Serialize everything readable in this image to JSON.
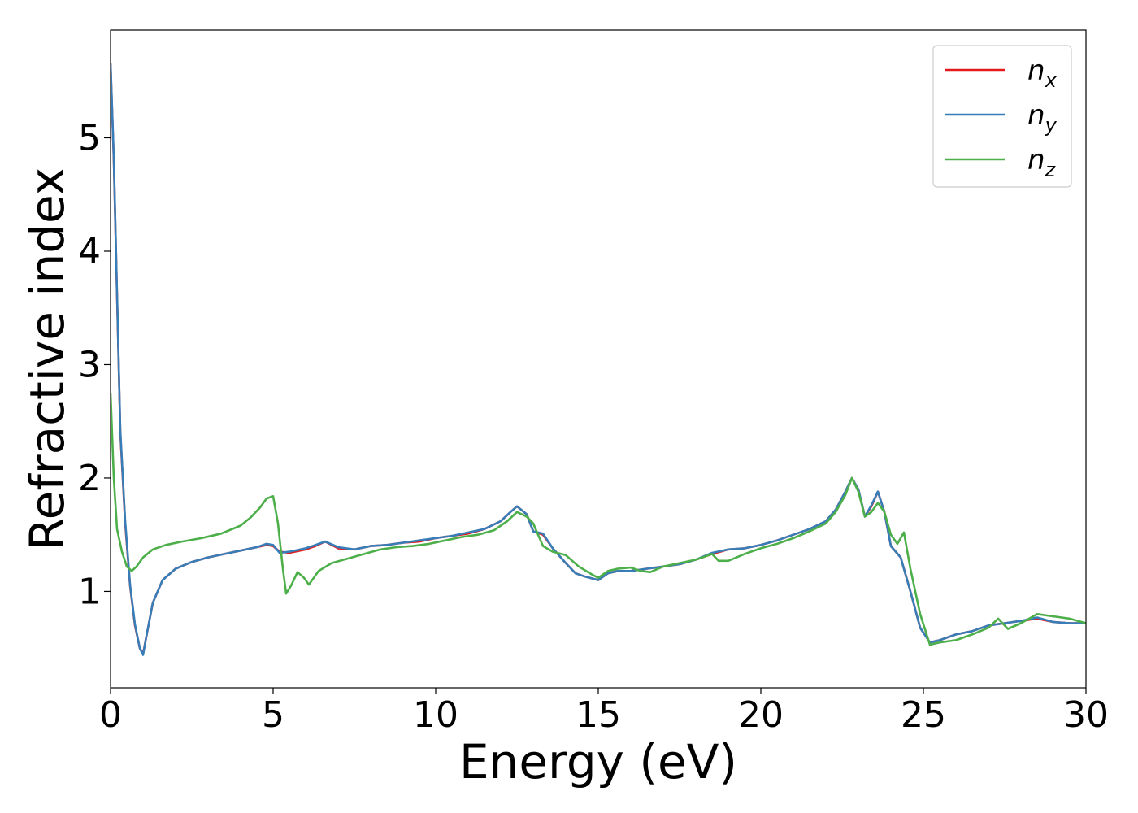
{
  "chart_data": {
    "type": "line",
    "title": "",
    "xlabel": "Energy (eV)",
    "ylabel": "Refractive index",
    "xlim": [
      0,
      30
    ],
    "ylim": [
      0.15,
      5.95
    ],
    "xticks": [
      0,
      5,
      10,
      15,
      20,
      25,
      30
    ],
    "yticks": [
      1,
      2,
      3,
      4,
      5
    ],
    "grid": false,
    "legend_position": "top-right",
    "series": [
      {
        "name_base": "n",
        "name_sub": "x",
        "color": "#e41a1c",
        "x": [
          0,
          0.1,
          0.2,
          0.3,
          0.45,
          0.6,
          0.75,
          0.9,
          1.0,
          1.1,
          1.3,
          1.6,
          2.0,
          2.5,
          3.0,
          3.5,
          4.0,
          4.5,
          4.8,
          5.0,
          5.2,
          5.5,
          6.0,
          6.3,
          6.6,
          7.0,
          7.5,
          8.0,
          8.5,
          9.0,
          9.5,
          10.0,
          10.5,
          11.0,
          11.5,
          12.0,
          12.3,
          12.5,
          12.8,
          13.0,
          13.3,
          13.6,
          14.0,
          14.3,
          14.6,
          15.0,
          15.3,
          15.6,
          16.0,
          16.5,
          17.0,
          17.5,
          18.0,
          18.5,
          19.0,
          19.5,
          20.0,
          20.5,
          21.0,
          21.5,
          22.0,
          22.3,
          22.6,
          22.8,
          23.0,
          23.2,
          23.4,
          23.6,
          23.8,
          24.0,
          24.3,
          24.6,
          24.9,
          25.2,
          25.5,
          26.0,
          26.5,
          27.0,
          27.5,
          28.0,
          28.5,
          29.0,
          29.5,
          30.0
        ],
        "y": [
          5.65,
          4.8,
          3.6,
          2.4,
          1.6,
          1.05,
          0.7,
          0.5,
          0.45,
          0.6,
          0.9,
          1.1,
          1.2,
          1.26,
          1.3,
          1.33,
          1.36,
          1.39,
          1.41,
          1.4,
          1.35,
          1.34,
          1.37,
          1.4,
          1.44,
          1.38,
          1.37,
          1.4,
          1.41,
          1.43,
          1.44,
          1.47,
          1.49,
          1.51,
          1.55,
          1.62,
          1.7,
          1.75,
          1.68,
          1.53,
          1.5,
          1.38,
          1.25,
          1.16,
          1.13,
          1.1,
          1.16,
          1.18,
          1.18,
          1.2,
          1.22,
          1.24,
          1.28,
          1.33,
          1.37,
          1.38,
          1.41,
          1.45,
          1.5,
          1.55,
          1.62,
          1.72,
          1.88,
          2.0,
          1.9,
          1.66,
          1.75,
          1.88,
          1.7,
          1.4,
          1.3,
          1.0,
          0.68,
          0.55,
          0.57,
          0.62,
          0.65,
          0.7,
          0.72,
          0.74,
          0.76,
          0.73,
          0.72,
          0.72
        ]
      },
      {
        "name_base": "n",
        "name_sub": "y",
        "color": "#377eb8",
        "x": [
          0,
          0.1,
          0.2,
          0.3,
          0.45,
          0.6,
          0.75,
          0.9,
          1.0,
          1.1,
          1.3,
          1.6,
          2.0,
          2.5,
          3.0,
          3.5,
          4.0,
          4.5,
          4.8,
          5.0,
          5.2,
          5.5,
          6.0,
          6.3,
          6.6,
          7.0,
          7.5,
          8.0,
          8.5,
          9.0,
          9.5,
          10.0,
          10.5,
          11.0,
          11.5,
          12.0,
          12.3,
          12.5,
          12.8,
          13.0,
          13.3,
          13.6,
          14.0,
          14.3,
          14.6,
          15.0,
          15.3,
          15.6,
          16.0,
          16.5,
          17.0,
          17.5,
          18.0,
          18.5,
          19.0,
          19.5,
          20.0,
          20.5,
          21.0,
          21.5,
          22.0,
          22.3,
          22.6,
          22.8,
          23.0,
          23.2,
          23.4,
          23.6,
          23.8,
          24.0,
          24.3,
          24.6,
          24.9,
          25.2,
          25.5,
          26.0,
          26.5,
          27.0,
          27.5,
          28.0,
          28.5,
          29.0,
          29.5,
          30.0
        ],
        "y": [
          5.66,
          4.82,
          3.62,
          2.42,
          1.62,
          1.06,
          0.71,
          0.5,
          0.44,
          0.6,
          0.9,
          1.1,
          1.2,
          1.26,
          1.3,
          1.33,
          1.36,
          1.39,
          1.42,
          1.41,
          1.34,
          1.35,
          1.38,
          1.41,
          1.44,
          1.39,
          1.37,
          1.4,
          1.41,
          1.43,
          1.45,
          1.47,
          1.49,
          1.52,
          1.55,
          1.62,
          1.7,
          1.75,
          1.68,
          1.53,
          1.51,
          1.38,
          1.25,
          1.16,
          1.13,
          1.1,
          1.16,
          1.18,
          1.18,
          1.2,
          1.22,
          1.24,
          1.28,
          1.34,
          1.37,
          1.38,
          1.41,
          1.45,
          1.5,
          1.55,
          1.62,
          1.72,
          1.88,
          2.0,
          1.9,
          1.66,
          1.76,
          1.88,
          1.7,
          1.4,
          1.3,
          1.0,
          0.68,
          0.55,
          0.57,
          0.62,
          0.65,
          0.7,
          0.72,
          0.74,
          0.77,
          0.73,
          0.72,
          0.72
        ]
      },
      {
        "name_base": "n",
        "name_sub": "z",
        "color": "#4daf4a",
        "x": [
          0,
          0.1,
          0.2,
          0.35,
          0.5,
          0.65,
          0.8,
          1.0,
          1.3,
          1.7,
          2.2,
          2.8,
          3.4,
          4.0,
          4.3,
          4.6,
          4.8,
          5.0,
          5.15,
          5.3,
          5.4,
          5.55,
          5.75,
          5.95,
          6.1,
          6.4,
          6.8,
          7.3,
          7.8,
          8.3,
          8.8,
          9.3,
          9.8,
          10.3,
          10.8,
          11.3,
          11.8,
          12.2,
          12.5,
          12.8,
          13.0,
          13.3,
          13.6,
          14.0,
          14.4,
          14.8,
          15.0,
          15.3,
          15.6,
          16.0,
          16.3,
          16.6,
          17.0,
          17.5,
          18.0,
          18.5,
          18.7,
          19.0,
          19.5,
          20.0,
          20.5,
          21.0,
          21.5,
          22.0,
          22.3,
          22.6,
          22.8,
          23.0,
          23.2,
          23.4,
          23.6,
          23.8,
          24.0,
          24.2,
          24.4,
          24.6,
          24.9,
          25.2,
          25.5,
          26.0,
          26.5,
          27.0,
          27.3,
          27.6,
          28.0,
          28.5,
          29.0,
          29.5,
          30.0
        ],
        "y": [
          2.75,
          2.0,
          1.55,
          1.35,
          1.22,
          1.18,
          1.22,
          1.3,
          1.37,
          1.41,
          1.44,
          1.47,
          1.51,
          1.58,
          1.65,
          1.74,
          1.82,
          1.84,
          1.6,
          1.2,
          0.98,
          1.05,
          1.17,
          1.12,
          1.06,
          1.18,
          1.25,
          1.29,
          1.33,
          1.37,
          1.39,
          1.4,
          1.42,
          1.45,
          1.48,
          1.5,
          1.54,
          1.62,
          1.7,
          1.66,
          1.6,
          1.4,
          1.35,
          1.32,
          1.22,
          1.15,
          1.12,
          1.18,
          1.2,
          1.21,
          1.18,
          1.17,
          1.22,
          1.25,
          1.28,
          1.33,
          1.27,
          1.27,
          1.33,
          1.38,
          1.42,
          1.47,
          1.53,
          1.6,
          1.7,
          1.85,
          2.0,
          1.88,
          1.66,
          1.7,
          1.78,
          1.7,
          1.5,
          1.42,
          1.52,
          1.2,
          0.8,
          0.53,
          0.55,
          0.57,
          0.62,
          0.68,
          0.76,
          0.67,
          0.72,
          0.8,
          0.78,
          0.76,
          0.72
        ]
      }
    ]
  }
}
